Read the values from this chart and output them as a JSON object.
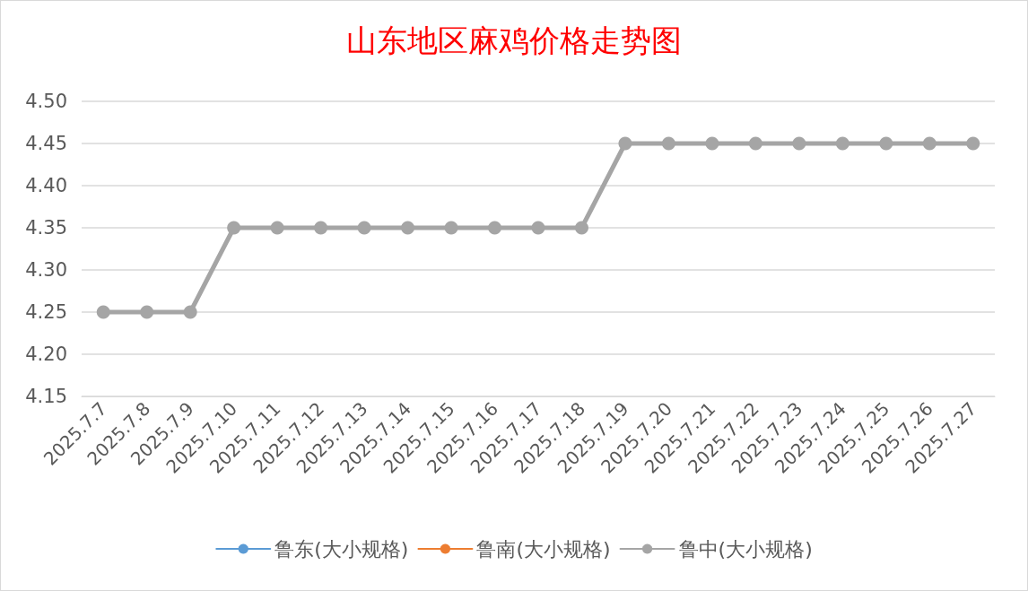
{
  "chart_data": {
    "type": "line",
    "title": "山东地区麻鸡价格走势图",
    "categories": [
      "2025.7.7",
      "2025.7.8",
      "2025.7.9",
      "2025.7.10",
      "2025.7.11",
      "2025.7.12",
      "2025.7.13",
      "2025.7.14",
      "2025.7.15",
      "2025.7.16",
      "2025.7.17",
      "2025.7.18",
      "2025.7.19",
      "2025.7.20",
      "2025.7.21",
      "2025.7.22",
      "2025.7.23",
      "2025.7.24",
      "2025.7.25",
      "2025.7.26",
      "2025.7.27"
    ],
    "series": [
      {
        "name": "鲁东(大小规格)",
        "color": "#5b9bd5",
        "values": [
          null,
          null,
          null,
          null,
          null,
          null,
          null,
          null,
          null,
          null,
          null,
          null,
          null,
          null,
          null,
          null,
          null,
          null,
          null,
          null,
          null
        ]
      },
      {
        "name": "鲁南(大小规格)",
        "color": "#ed7d31",
        "values": [
          null,
          null,
          null,
          null,
          null,
          null,
          null,
          null,
          null,
          null,
          null,
          null,
          null,
          null,
          null,
          null,
          null,
          null,
          null,
          null,
          null
        ]
      },
      {
        "name": "鲁中(大小规格)",
        "color": "#a5a5a5",
        "values": [
          4.25,
          4.25,
          4.25,
          4.35,
          4.35,
          4.35,
          4.35,
          4.35,
          4.35,
          4.35,
          4.35,
          4.35,
          4.45,
          4.45,
          4.45,
          4.45,
          4.45,
          4.45,
          4.45,
          4.45,
          4.45
        ]
      }
    ],
    "ylim": [
      4.15,
      4.5
    ],
    "yticks": [
      4.15,
      {
        "value": 4.2,
        "label": "4.20"
      },
      4.25,
      {
        "value": 4.3,
        "label": "4.30"
      },
      4.35,
      {
        "value": 4.4,
        "label": "4.40"
      },
      4.45,
      {
        "value": 4.5,
        "label": "4.50"
      }
    ],
    "grid": "y",
    "legend": "bottom",
    "marker": "circle",
    "line_style": "solid"
  }
}
